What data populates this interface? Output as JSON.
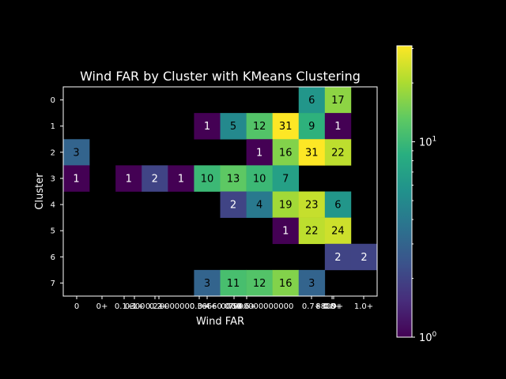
{
  "chart_data": {
    "type": "heatmap",
    "title": "Wind FAR by Cluster with KMeans Clustering",
    "xlabel": "Wind FAR",
    "ylabel": "Cluster",
    "x_tick_labels": [
      "0",
      "0+",
      "0.1+",
      "0.1+",
      "0.2+",
      "0.2+",
      "0.3+",
      "0.4+",
      "0.5+",
      "0.6+",
      "0.7+",
      "0.8+",
      "0.9+",
      "1.0+"
    ],
    "x_tick_overlap_glyphs": [
      "300",
      "0000000",
      "6660",
      "0000",
      "7000000000000",
      "8800"
    ],
    "y_tick_labels": [
      "0",
      "1",
      "2",
      "3",
      "4",
      "5",
      "6",
      "7"
    ],
    "cells": [
      [
        0,
        9,
        6
      ],
      [
        0,
        10,
        17
      ],
      [
        1,
        5,
        1
      ],
      [
        1,
        6,
        5
      ],
      [
        1,
        7,
        12
      ],
      [
        1,
        8,
        31
      ],
      [
        1,
        9,
        9
      ],
      [
        1,
        10,
        1
      ],
      [
        2,
        0,
        3
      ],
      [
        2,
        7,
        1
      ],
      [
        2,
        8,
        16
      ],
      [
        2,
        9,
        31
      ],
      [
        2,
        10,
        22
      ],
      [
        3,
        0,
        1
      ],
      [
        3,
        2,
        1
      ],
      [
        3,
        3,
        2
      ],
      [
        3,
        4,
        1
      ],
      [
        3,
        5,
        10
      ],
      [
        3,
        6,
        13
      ],
      [
        3,
        7,
        10
      ],
      [
        3,
        8,
        7
      ],
      [
        4,
        6,
        2
      ],
      [
        4,
        7,
        4
      ],
      [
        4,
        8,
        19
      ],
      [
        4,
        9,
        23
      ],
      [
        4,
        10,
        6
      ],
      [
        5,
        8,
        1
      ],
      [
        5,
        9,
        22
      ],
      [
        5,
        10,
        24
      ],
      [
        6,
        10,
        2
      ],
      [
        6,
        11,
        2
      ],
      [
        7,
        5,
        3
      ],
      [
        7,
        6,
        11
      ],
      [
        7,
        7,
        12
      ],
      [
        7,
        8,
        16
      ],
      [
        7,
        9,
        3
      ]
    ],
    "n_cols": 12,
    "n_rows": 8,
    "color_scale": "log",
    "colormap": "viridis",
    "vmin": 1,
    "vmax": 31,
    "colorbar_ticks": [
      {
        "value": 1,
        "base": "10",
        "exp": "0"
      },
      {
        "value": 10,
        "base": "10",
        "exp": "1"
      }
    ],
    "colors": {
      "background": "#000000",
      "foreground": "#ffffff",
      "dark_text": "#000000",
      "light_text": "#ffffff"
    }
  }
}
